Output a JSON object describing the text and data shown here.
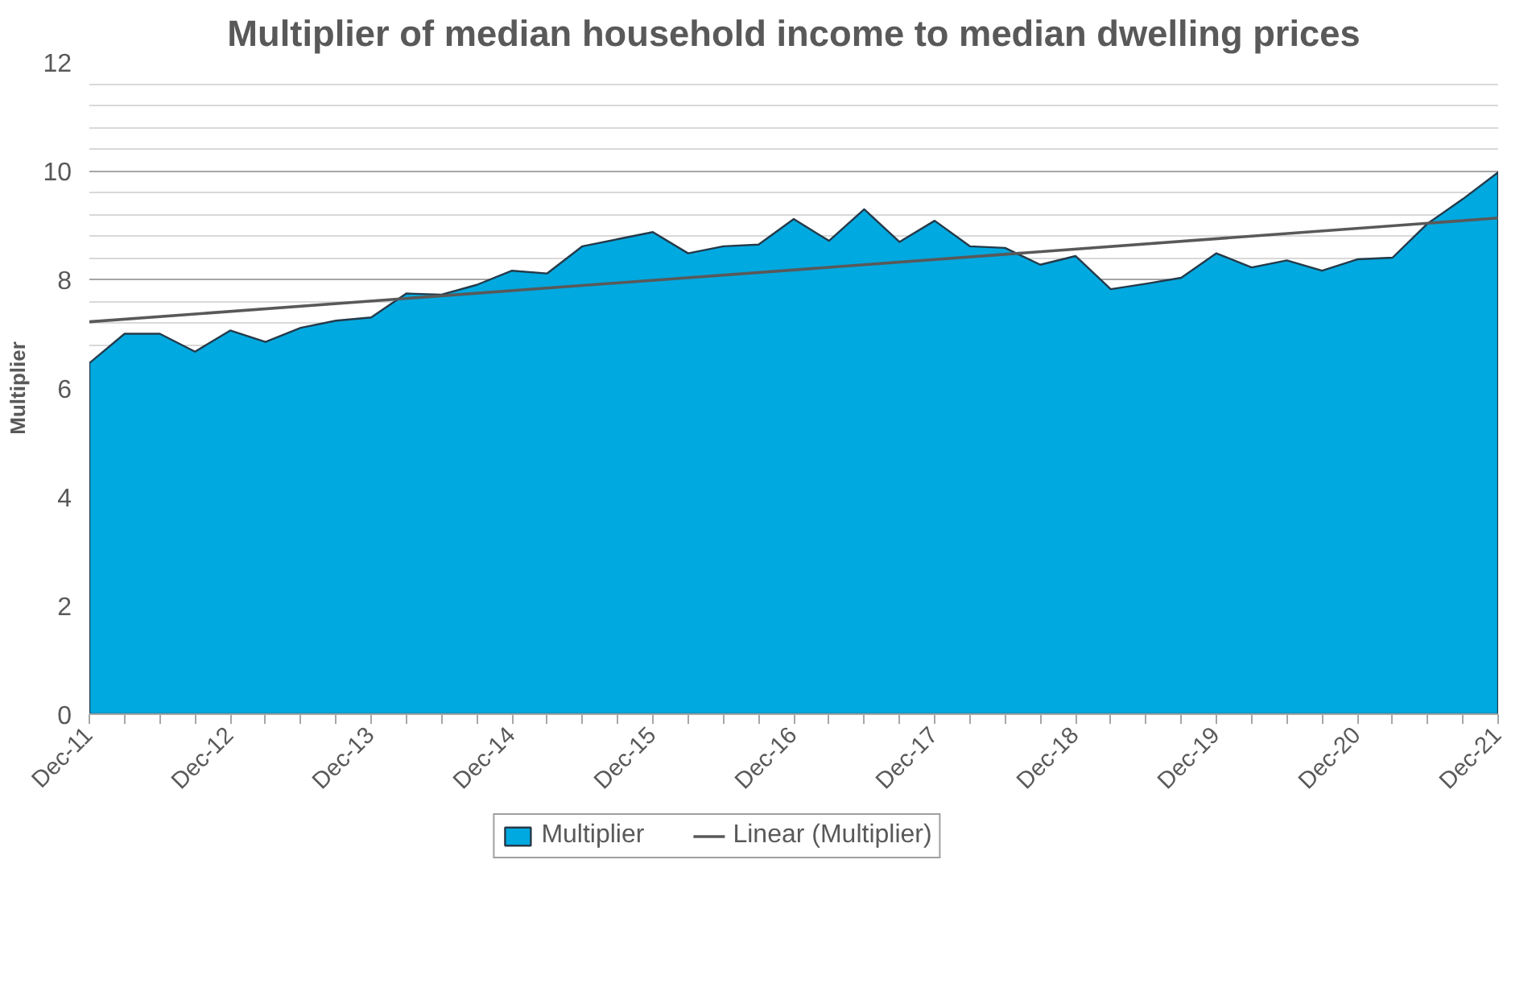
{
  "chart_data": {
    "type": "area",
    "title": "Multiplier of median household income to median dwelling prices",
    "ylabel": "Multiplier",
    "categories": [
      "Dec-11",
      null,
      null,
      null,
      "Dec-12",
      null,
      null,
      null,
      "Dec-13",
      null,
      null,
      null,
      "Dec-14",
      null,
      null,
      null,
      "Dec-15",
      null,
      null,
      null,
      "Dec-16",
      null,
      null,
      null,
      "Dec-17",
      null,
      null,
      null,
      "Dec-18",
      null,
      null,
      null,
      "Dec-19",
      null,
      null,
      null,
      "Dec-20",
      null,
      null,
      null,
      "Dec-21"
    ],
    "series": [
      {
        "name": "Multiplier",
        "color": "#00a9e0",
        "values": [
          6.46,
          7.0,
          7.0,
          6.67,
          7.06,
          6.85,
          7.11,
          7.24,
          7.3,
          7.74,
          7.72,
          7.9,
          8.16,
          8.11,
          8.61,
          8.74,
          8.87,
          8.48,
          8.61,
          8.64,
          9.11,
          8.71,
          9.29,
          8.69,
          9.08,
          8.61,
          8.58,
          8.27,
          8.43,
          7.82,
          7.92,
          8.03,
          8.48,
          8.22,
          8.35,
          8.16,
          8.37,
          8.4,
          9.03,
          9.48,
          9.97
        ]
      },
      {
        "name": "Linear (Multiplier)",
        "type": "line",
        "color": "#595959",
        "x": [
          "Dec-11",
          "Dec-21"
        ],
        "values": [
          7.22,
          9.13
        ]
      }
    ],
    "ylim": [
      0,
      12
    ],
    "yticks": [
      0,
      2,
      4,
      6,
      8,
      10,
      12
    ],
    "grid": "y",
    "legend": "bottom"
  }
}
